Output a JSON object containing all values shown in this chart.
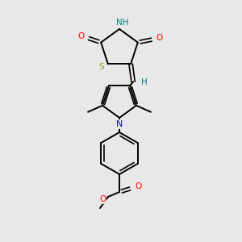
{
  "bg_color": "#e8e8e8",
  "atom_colors": {
    "S": "#999900",
    "N_thiaz": "#008080",
    "N_pyrr": "#0000ff",
    "O": "#ff0000",
    "C": "#000000",
    "H": "#008080"
  }
}
